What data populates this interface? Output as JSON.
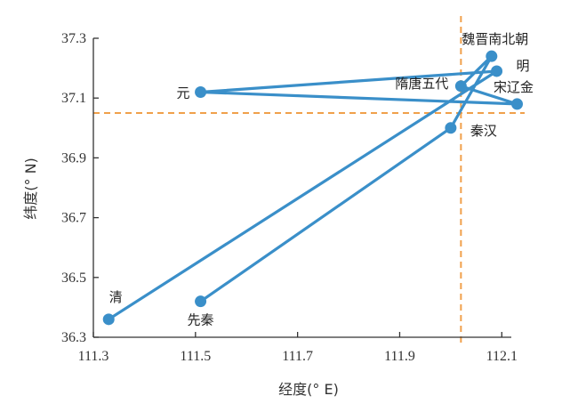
{
  "chart_data": {
    "type": "line",
    "xlabel": "经度(° E)",
    "ylabel": "纬度(° N)",
    "xlim": [
      111.3,
      112.15
    ],
    "ylim": [
      36.3,
      37.3
    ],
    "xticks": [
      111.3,
      111.5,
      111.7,
      111.9,
      112.1
    ],
    "xtick_labels": [
      "111.3",
      "111.5",
      "111.7",
      "111.9",
      "112.1"
    ],
    "yticks": [
      36.3,
      36.5,
      36.7,
      36.9,
      37.1,
      37.3
    ],
    "ytick_labels": [
      "36.3",
      "36.5",
      "36.7",
      "36.9",
      "37.1",
      "37.3"
    ],
    "grid": false,
    "series": [
      {
        "points": [
          {
            "label": "先秦",
            "x": 111.51,
            "y": 36.42
          },
          {
            "label": "秦汉",
            "x": 112.0,
            "y": 37.0
          },
          {
            "label": "魏晋南北朝",
            "x": 112.08,
            "y": 37.24
          },
          {
            "label": "隋唐五代",
            "x": 112.02,
            "y": 37.14
          },
          {
            "label": "宋辽金",
            "x": 112.13,
            "y": 37.08
          },
          {
            "label": "元",
            "x": 111.51,
            "y": 37.12
          },
          {
            "label": "明",
            "x": 112.09,
            "y": 37.19
          },
          {
            "label": "清",
            "x": 111.33,
            "y": 36.36
          }
        ]
      }
    ],
    "reference_lines": {
      "vertical_x": 112.02,
      "horizontal_y": 37.05
    },
    "colors": {
      "series": "#3a8fc9",
      "reference": "#f0a04b",
      "axis": "#333333"
    }
  }
}
